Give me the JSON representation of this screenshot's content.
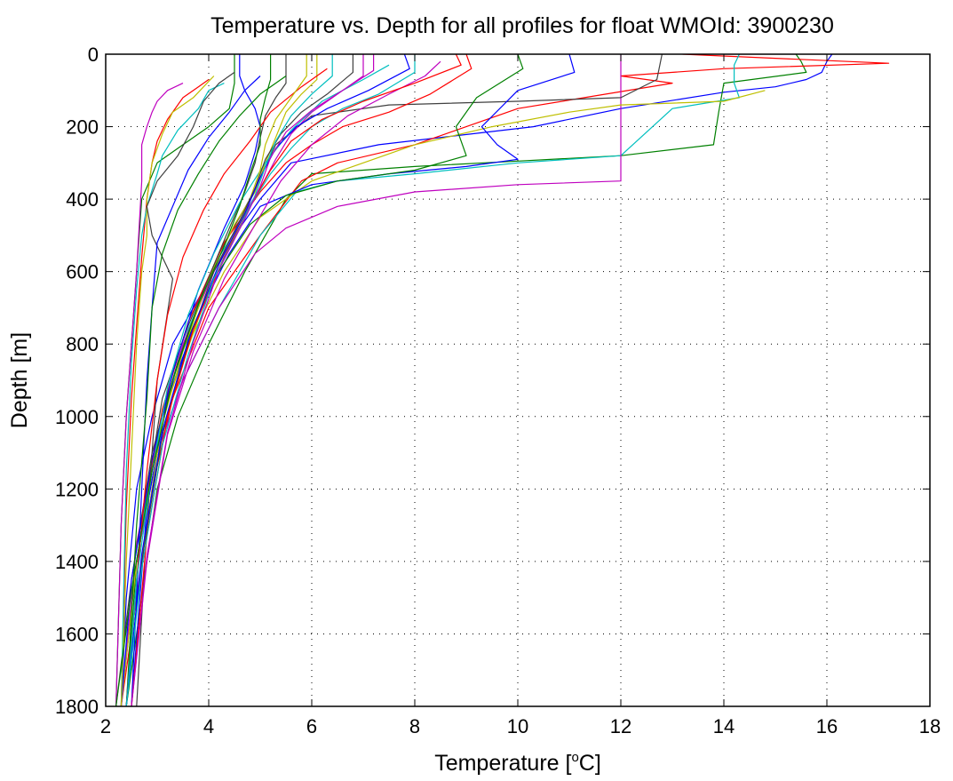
{
  "chart_data": {
    "type": "line",
    "title": "Temperature vs. Depth for all profiles for float WMOId: 3900230",
    "xlabel_prefix": "Temperature [",
    "xlabel_sup": "o",
    "xlabel_suffix": "C]",
    "ylabel": "Depth [m]",
    "xlim": [
      2,
      18
    ],
    "ylim": [
      0,
      1800
    ],
    "y_reversed": true,
    "grid": true,
    "xticks": [
      "2",
      "4",
      "6",
      "8",
      "10",
      "12",
      "14",
      "16",
      "18"
    ],
    "yticks": [
      "0",
      "200",
      "400",
      "600",
      "800",
      "1000",
      "1200",
      "1400",
      "1600",
      "1800"
    ],
    "series_colors": [
      "#0000ff",
      "#008000",
      "#ff0000",
      "#00bfbf",
      "#bf00bf",
      "#bfbf00",
      "#404040"
    ],
    "series": [
      {
        "x": [
          16.1,
          16.0,
          15.9,
          15.6,
          15.0,
          14.0,
          12.0,
          10.3,
          7.3,
          5.6,
          5.0,
          4.5,
          3.9,
          3.3,
          2.9,
          2.6,
          2.4,
          2.3
        ],
        "y": [
          0,
          20,
          50,
          70,
          90,
          105,
          150,
          200,
          250,
          300,
          400,
          500,
          650,
          800,
          1000,
          1200,
          1500,
          1800
        ]
      },
      {
        "x": [
          15.4,
          15.5,
          15.6,
          14.0,
          13.9,
          13.8,
          12.0,
          10.0,
          8.0,
          6.0,
          5.5,
          4.7,
          4.0,
          3.4,
          3.0,
          2.7,
          2.4
        ],
        "y": [
          0,
          20,
          50,
          80,
          160,
          250,
          280,
          295,
          310,
          330,
          400,
          600,
          800,
          1000,
          1200,
          1500,
          1800
        ]
      },
      {
        "x": [
          13.2,
          17.2,
          14.0,
          12.0,
          13.0,
          10.0,
          8.0,
          6.5,
          5.8,
          5.0,
          4.0,
          3.3,
          2.9,
          2.6,
          2.3
        ],
        "y": [
          0,
          25,
          40,
          60,
          80,
          150,
          250,
          300,
          350,
          500,
          700,
          950,
          1200,
          1500,
          1800
        ]
      },
      {
        "x": [
          14.3,
          14.2,
          14.2,
          14.3,
          13.0,
          12.0,
          10.0,
          8.0,
          6.5,
          5.7,
          5.0,
          4.2,
          3.5,
          3.0,
          2.6,
          2.3
        ],
        "y": [
          0,
          30,
          80,
          120,
          150,
          280,
          300,
          330,
          350,
          380,
          500,
          700,
          900,
          1100,
          1400,
          1800
        ]
      },
      {
        "x": [
          12.0,
          12.0,
          12.0,
          12.0,
          10.0,
          8.0,
          6.5,
          5.5,
          4.9,
          4.2,
          3.5,
          3.0,
          2.6,
          2.3
        ],
        "y": [
          0,
          60,
          200,
          350,
          360,
          380,
          420,
          480,
          550,
          700,
          900,
          1100,
          1400,
          1800
        ]
      },
      {
        "x": [
          14.8,
          14.0,
          12.0,
          11.0,
          9.5,
          8.0,
          7.0,
          6.0,
          5.0,
          4.3,
          3.6,
          3.1,
          2.7,
          2.4
        ],
        "y": [
          100,
          130,
          140,
          160,
          200,
          250,
          300,
          350,
          450,
          600,
          800,
          1000,
          1300,
          1800
        ]
      },
      {
        "x": [
          12.8,
          12.7,
          12.0,
          10.0,
          7.5,
          6.0,
          5.3,
          4.8,
          4.2,
          3.6,
          3.1,
          2.7,
          2.4
        ],
        "y": [
          0,
          70,
          120,
          130,
          140,
          170,
          250,
          400,
          550,
          750,
          950,
          1300,
          1800
        ]
      },
      {
        "x": [
          11.0,
          11.1,
          10.0,
          9.3,
          9.6,
          10.0,
          9.0,
          7.5,
          6.0,
          5.0,
          4.4,
          3.8,
          3.2,
          2.8,
          2.5
        ],
        "y": [
          0,
          50,
          100,
          200,
          250,
          290,
          310,
          330,
          360,
          420,
          550,
          720,
          950,
          1250,
          1800
        ]
      },
      {
        "x": [
          10.0,
          10.1,
          9.2,
          8.8,
          9.0,
          8.0,
          6.5,
          5.5,
          4.8,
          4.1,
          3.4,
          3.0,
          2.6,
          2.4
        ],
        "y": [
          0,
          40,
          120,
          200,
          280,
          320,
          350,
          390,
          470,
          620,
          850,
          1050,
          1400,
          1800
        ]
      },
      {
        "x": [
          9.0,
          9.1,
          8.3,
          7.5,
          6.6,
          6.0,
          5.5,
          5.0,
          4.3,
          3.6,
          3.1,
          2.7,
          2.4
        ],
        "y": [
          0,
          40,
          110,
          160,
          200,
          250,
          300,
          380,
          520,
          740,
          980,
          1300,
          1800
        ]
      },
      {
        "x": [
          8.0,
          8.0,
          7.3,
          6.6,
          6.0,
          5.6,
          5.2,
          4.8,
          4.2,
          3.6,
          3.1,
          2.7,
          2.4
        ],
        "y": [
          0,
          50,
          110,
          150,
          200,
          260,
          330,
          420,
          560,
          760,
          1000,
          1300,
          1800
        ]
      },
      {
        "x": [
          7.0,
          7.0,
          6.5,
          6.0,
          5.6,
          5.3,
          5.0,
          4.6,
          4.1,
          3.5,
          3.0,
          2.6,
          2.3
        ],
        "y": [
          0,
          60,
          110,
          160,
          220,
          290,
          370,
          460,
          600,
          800,
          1050,
          1350,
          1800
        ]
      },
      {
        "x": [
          6.1,
          6.1,
          5.8,
          5.5,
          5.3,
          5.1,
          4.9,
          4.5,
          4.0,
          3.5,
          3.0,
          2.6,
          2.3
        ],
        "y": [
          0,
          70,
          110,
          160,
          230,
          300,
          380,
          470,
          620,
          820,
          1070,
          1400,
          1800
        ]
      },
      {
        "x": [
          5.5,
          5.5,
          5.3,
          5.1,
          5.0,
          4.9,
          4.7,
          4.4,
          3.9,
          3.4,
          2.9,
          2.5,
          2.2
        ],
        "y": [
          0,
          80,
          120,
          170,
          230,
          300,
          380,
          480,
          650,
          850,
          1100,
          1450,
          1800
        ]
      },
      {
        "x": [
          4.6,
          4.6,
          4.7,
          4.9,
          5.0,
          4.9,
          4.7,
          4.3,
          3.8,
          3.3,
          2.9,
          2.5,
          2.3
        ],
        "y": [
          0,
          60,
          100,
          150,
          200,
          270,
          360,
          480,
          650,
          880,
          1120,
          1450,
          1800
        ]
      },
      {
        "x": [
          4.5,
          4.5,
          4.4,
          4.0,
          3.5,
          3.0,
          2.7,
          2.6,
          2.5,
          2.4,
          2.3,
          2.2
        ],
        "y": [
          0,
          80,
          150,
          200,
          250,
          300,
          400,
          600,
          800,
          1000,
          1300,
          1800
        ]
      },
      {
        "x": [
          4.0,
          3.8,
          3.5,
          3.2,
          3.0,
          2.9,
          2.8,
          2.7,
          2.6,
          2.5,
          2.4,
          2.3
        ],
        "y": [
          70,
          90,
          120,
          180,
          240,
          300,
          400,
          560,
          750,
          950,
          1250,
          1800
        ]
      },
      {
        "x": [
          4.3,
          4.0,
          3.8,
          3.4,
          3.1,
          3.0,
          2.8,
          2.7,
          2.6,
          2.5,
          2.4,
          2.3
        ],
        "y": [
          80,
          100,
          150,
          210,
          280,
          330,
          420,
          500,
          650,
          850,
          1150,
          1800
        ]
      },
      {
        "x": [
          3.5,
          3.2,
          3.0,
          2.9,
          2.8,
          2.7,
          2.7,
          2.6,
          2.5,
          2.4,
          2.3,
          2.2
        ],
        "y": [
          80,
          100,
          130,
          160,
          200,
          250,
          350,
          600,
          800,
          1000,
          1300,
          1800
        ]
      },
      {
        "x": [
          4.1,
          3.9,
          3.7,
          3.3,
          3.1,
          2.9,
          2.8,
          2.8,
          2.7,
          2.6,
          2.5,
          2.4,
          2.3
        ],
        "y": [
          60,
          90,
          120,
          160,
          220,
          300,
          400,
          500,
          600,
          800,
          1100,
          1400,
          1800
        ]
      },
      {
        "x": [
          4.5,
          4.2,
          3.9,
          3.7,
          3.4,
          3.0,
          2.8,
          2.9,
          3.3,
          3.0,
          2.8,
          2.6
        ],
        "y": [
          50,
          80,
          130,
          200,
          280,
          350,
          420,
          500,
          620,
          900,
          1300,
          1800
        ]
      },
      {
        "x": [
          5.0,
          4.7,
          4.4,
          4.0,
          3.6,
          3.3,
          3.0,
          2.9,
          2.8,
          2.7,
          2.5
        ],
        "y": [
          60,
          100,
          160,
          230,
          320,
          420,
          520,
          700,
          900,
          1200,
          1800
        ]
      },
      {
        "x": [
          5.5,
          5.0,
          4.6,
          4.2,
          3.8,
          3.4,
          3.1,
          2.9,
          2.8,
          2.6,
          2.4
        ],
        "y": [
          60,
          110,
          170,
          240,
          330,
          430,
          550,
          700,
          950,
          1300,
          1800
        ]
      },
      {
        "x": [
          6.3,
          5.8,
          5.2,
          4.8,
          4.3,
          3.9,
          3.5,
          3.2,
          3.0,
          2.8,
          2.6,
          2.4
        ],
        "y": [
          40,
          90,
          160,
          240,
          330,
          430,
          560,
          720,
          900,
          1150,
          1450,
          1800
        ]
      },
      {
        "x": [
          7.5,
          7.0,
          6.2,
          5.6,
          5.1,
          4.6,
          4.1,
          3.6,
          3.2,
          2.9,
          2.6,
          2.4
        ],
        "y": [
          30,
          70,
          130,
          210,
          300,
          410,
          550,
          720,
          920,
          1150,
          1450,
          1800
        ]
      },
      {
        "x": [
          8.5,
          8.2,
          7.5,
          6.7,
          6.0,
          5.4,
          4.9,
          4.3,
          3.7,
          3.2,
          2.8,
          2.5
        ],
        "y": [
          20,
          60,
          110,
          170,
          250,
          350,
          470,
          620,
          820,
          1050,
          1400,
          1800
        ]
      },
      {
        "x": [
          5.9,
          5.9,
          5.6,
          5.3,
          5.1,
          5.0,
          4.8,
          4.5,
          4.0,
          3.5,
          3.0,
          2.7,
          2.4
        ],
        "y": [
          0,
          60,
          120,
          180,
          250,
          320,
          400,
          500,
          650,
          850,
          1100,
          1400,
          1800
        ]
      },
      {
        "x": [
          6.8,
          6.8,
          6.3,
          5.8,
          5.4,
          5.1,
          4.9,
          4.6,
          4.1,
          3.6,
          3.1,
          2.7,
          2.4
        ],
        "y": [
          0,
          50,
          110,
          160,
          220,
          290,
          370,
          460,
          600,
          800,
          1050,
          1400,
          1800
        ]
      },
      {
        "x": [
          7.8,
          7.9,
          7.1,
          6.3,
          5.7,
          5.3,
          5.0,
          4.7,
          4.2,
          3.6,
          3.1,
          2.7,
          2.4
        ],
        "y": [
          0,
          40,
          100,
          150,
          200,
          260,
          340,
          440,
          580,
          790,
          1040,
          1380,
          1800
        ]
      },
      {
        "x": [
          5.2,
          5.2,
          5.1,
          5.0,
          5.0,
          4.8,
          4.6,
          4.3,
          3.8,
          3.3,
          2.9,
          2.5,
          2.2
        ],
        "y": [
          0,
          70,
          120,
          180,
          250,
          330,
          420,
          530,
          690,
          900,
          1150,
          1480,
          1800
        ]
      },
      {
        "x": [
          8.8,
          8.9,
          8.0,
          7.0,
          6.2,
          5.6,
          5.2,
          4.8,
          4.3,
          3.7,
          3.2,
          2.8,
          2.5
        ],
        "y": [
          0,
          30,
          80,
          130,
          180,
          240,
          320,
          420,
          560,
          760,
          1000,
          1330,
          1800
        ]
      },
      {
        "x": [
          6.4,
          6.4,
          6.0,
          5.6,
          5.3,
          5.1,
          4.9,
          4.6,
          4.1,
          3.6,
          3.1,
          2.7,
          2.4
        ],
        "y": [
          0,
          60,
          110,
          170,
          240,
          310,
          390,
          480,
          620,
          830,
          1080,
          1420,
          1800
        ]
      },
      {
        "x": [
          7.2,
          7.2,
          6.6,
          6.0,
          5.5,
          5.2,
          5.0,
          4.7,
          4.2,
          3.7,
          3.2,
          2.8,
          2.5
        ],
        "y": [
          0,
          45,
          100,
          155,
          215,
          285,
          365,
          455,
          595,
          795,
          1045,
          1385,
          1800
        ]
      }
    ]
  }
}
